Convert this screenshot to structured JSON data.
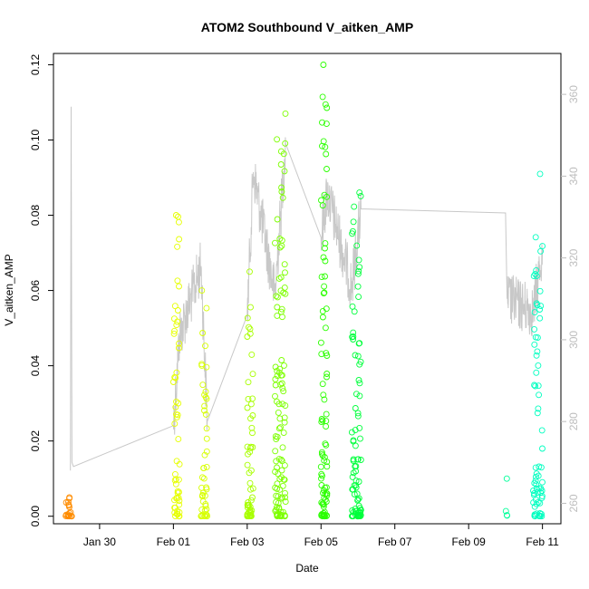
{
  "chart_data": {
    "type": "scatter",
    "title": "ATOM2 Southbound V_aitken_AMP",
    "xlabel": "Date",
    "ylabel": "V_aitken_AMP",
    "x_unit": "days",
    "xlim": [
      "2017-01-28T18:00",
      "2017-02-11T12:00"
    ],
    "ylim": [
      -0.002,
      0.123
    ],
    "y2lim": [
      255,
      370
    ],
    "x_ticks": [
      {
        "date": "2017-01-30",
        "label": "Jan 30"
      },
      {
        "date": "2017-02-01",
        "label": "Feb 01"
      },
      {
        "date": "2017-02-03",
        "label": "Feb 03"
      },
      {
        "date": "2017-02-05",
        "label": "Feb 05"
      },
      {
        "date": "2017-02-07",
        "label": "Feb 07"
      },
      {
        "date": "2017-02-09",
        "label": "Feb 09"
      },
      {
        "date": "2017-02-11",
        "label": "Feb 11"
      }
    ],
    "y_ticks": [
      {
        "value": 0.0,
        "label": "0.00"
      },
      {
        "value": 0.02,
        "label": "0.02"
      },
      {
        "value": 0.04,
        "label": "0.04"
      },
      {
        "value": 0.06,
        "label": "0.06"
      },
      {
        "value": 0.08,
        "label": "0.08"
      },
      {
        "value": 0.1,
        "label": "0.10"
      },
      {
        "value": 0.12,
        "label": "0.12"
      }
    ],
    "y2_ticks": [
      {
        "value": 260,
        "label": "260"
      },
      {
        "value": 280,
        "label": "280"
      },
      {
        "value": 300,
        "label": "300"
      },
      {
        "value": 320,
        "label": "320"
      },
      {
        "value": 340,
        "label": "340"
      },
      {
        "value": 360,
        "label": "360"
      }
    ],
    "colors": {
      "line": "#c8c8c8",
      "axis": "#000000",
      "right_axis": "#bdbdbd",
      "bursts": [
        "#ff8c00",
        "#e6ff00",
        "#c8ff00",
        "#7dff00",
        "#2bff00",
        "#00ff3c",
        "#00ff9a",
        "#00ffc0"
      ]
    },
    "bursts": [
      {
        "start": "2017-01-29T02:00",
        "end": "2017-01-29T06:00",
        "color": "#ff8c00",
        "max": 0.005,
        "count": 20
      },
      {
        "start": "2017-02-01T00:00",
        "end": "2017-02-01T04:00",
        "color": "#e6ff00",
        "max": 0.08,
        "count": 55
      },
      {
        "start": "2017-02-01T18:00",
        "end": "2017-02-01T22:00",
        "color": "#d7ff00",
        "max": 0.06,
        "count": 45
      },
      {
        "start": "2017-02-03T00:00",
        "end": "2017-02-03T04:00",
        "color": "#a8ff00",
        "max": 0.065,
        "count": 55
      },
      {
        "start": "2017-02-03T18:00",
        "end": "2017-02-04T01:00",
        "color": "#7dff00",
        "max": 0.107,
        "count": 110
      },
      {
        "start": "2017-02-05T00:00",
        "end": "2017-02-05T04:00",
        "color": "#2bff00",
        "max": 0.12,
        "count": 90
      },
      {
        "start": "2017-02-05T20:00",
        "end": "2017-02-06T02:00",
        "color": "#00ff3c",
        "max": 0.086,
        "count": 90
      },
      {
        "start": "2017-02-10T00:00",
        "end": "2017-02-10T01:00",
        "color": "#00ff9a",
        "max": 0.01,
        "count": 4
      },
      {
        "start": "2017-02-10T18:00",
        "end": "2017-02-11T00:00",
        "color": "#00ffc0",
        "max": 0.091,
        "count": 70
      }
    ],
    "secondary_line": {
      "points": [
        {
          "date": "2017-01-29T05:00",
          "value": 268
        },
        {
          "date": "2017-01-29T05:30",
          "value": 357
        },
        {
          "date": "2017-01-29T06:00",
          "value": 270
        },
        {
          "date": "2017-01-29T07:00",
          "value": 269
        },
        {
          "date": "2017-02-01T00:00",
          "value": 279
        },
        {
          "date": "2017-02-01T04:00",
          "value": 301
        },
        {
          "date": "2017-02-01T18:00",
          "value": 318
        },
        {
          "date": "2017-02-01T22:00",
          "value": 280
        },
        {
          "date": "2017-02-03T00:00",
          "value": 306
        },
        {
          "date": "2017-02-03T04:00",
          "value": 341
        },
        {
          "date": "2017-02-03T18:00",
          "value": 311
        },
        {
          "date": "2017-02-04T01:00",
          "value": 348
        },
        {
          "date": "2017-02-05T00:00",
          "value": 325
        },
        {
          "date": "2017-02-05T04:00",
          "value": 336
        },
        {
          "date": "2017-02-05T20:00",
          "value": 313
        },
        {
          "date": "2017-02-06T02:00",
          "value": 332
        },
        {
          "date": "2017-02-10T00:00",
          "value": 331
        },
        {
          "date": "2017-02-10T01:00",
          "value": 310
        },
        {
          "date": "2017-02-10T18:00",
          "value": 307
        },
        {
          "date": "2017-02-11T00:00",
          "value": 322
        }
      ]
    }
  }
}
